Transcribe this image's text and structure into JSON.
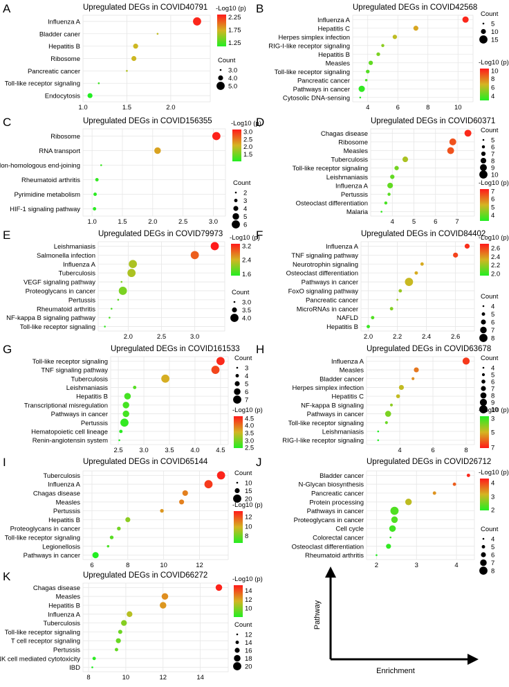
{
  "figure": {
    "legend_labels": {
      "count": "Count",
      "color": "-Log10 (p)"
    },
    "guide": {
      "y_label": "Pathway",
      "x_label": "Enrichment"
    },
    "colors": {
      "low": "#22ee22",
      "mid": "#d4b522",
      "high": "#ff1a1a",
      "grid": "#e6e6e6"
    }
  },
  "chart_data": [
    {
      "id": "A",
      "letter": "A",
      "type": "scatter",
      "title": "Upregulated DEGs in COVID40791",
      "pathways": [
        "Influenza A",
        "Bladder caner",
        "Hepatitis B",
        "Ribosome",
        "Pancreatic cancer",
        "Toll-like receptor signaling",
        "Endocytosis"
      ],
      "enrichment": [
        2.3,
        1.85,
        1.6,
        1.58,
        1.5,
        1.18,
        1.08
      ],
      "neg_log10_p": [
        2.3,
        1.65,
        1.7,
        1.7,
        1.6,
        1.2,
        1.1
      ],
      "count": [
        5,
        3,
        4,
        4,
        3,
        3,
        4
      ],
      "xlim": [
        1.0,
        2.45
      ],
      "xticks": [
        1.0,
        1.5,
        2.0
      ],
      "xtick_labels": [
        "1.0",
        "1.5",
        "2.0"
      ],
      "color_range": [
        1.1,
        2.35
      ],
      "color_ticks": [
        "2.25",
        "1.75",
        "1.25"
      ],
      "color_tick_values": [
        2.25,
        1.75,
        1.25
      ],
      "count_ticks": [
        "3.0",
        "4.0",
        "5.0"
      ],
      "count_tick_values": [
        3,
        4,
        5
      ],
      "count_range": [
        3,
        5
      ],
      "legend_order": "color-first"
    },
    {
      "id": "B",
      "letter": "B",
      "type": "scatter",
      "title": "Upregulated DEGs in COVID42568",
      "pathways": [
        "Influenza A",
        "Hepatitis C",
        "Herpes simplex infection",
        "RIG-I-like receptor signaling",
        "Hepatitis B",
        "Measles",
        "Toll-like receptor signaling",
        "Pancreatic cancer",
        "Pathways in cancer",
        "Cytosolic DNA-sensing"
      ],
      "enrichment": [
        10.5,
        7.2,
        5.8,
        5.0,
        4.7,
        4.2,
        4.0,
        3.9,
        3.6,
        3.5
      ],
      "neg_log10_p": [
        10,
        7,
        6.2,
        5.2,
        4.8,
        4.3,
        4,
        3.8,
        3.3,
        3.1
      ],
      "count": [
        12,
        10,
        9,
        7,
        8,
        9,
        8,
        6,
        12,
        5
      ],
      "xlim": [
        3.0,
        11.0
      ],
      "xticks": [
        4,
        6,
        8,
        10
      ],
      "xtick_labels": [
        "4",
        "6",
        "8",
        "10"
      ],
      "color_range": [
        3.0,
        10.3
      ],
      "color_ticks": [
        "10",
        "8",
        "6",
        "4"
      ],
      "color_tick_values": [
        10,
        8,
        6,
        4
      ],
      "count_ticks": [
        "5",
        "10",
        "15"
      ],
      "count_tick_values": [
        5,
        10,
        15
      ],
      "count_range": [
        5,
        15
      ],
      "legend_order": "count-first"
    },
    {
      "id": "C",
      "letter": "C",
      "type": "scatter",
      "title": "Upregulated DEGs in COVID156355",
      "pathways": [
        "Ribosome",
        "RNA transport",
        "Non-homologous end-joining",
        "Rheumatoid arthritis",
        "Pyrimidine metabolism",
        "HIF-1 signaling pathway"
      ],
      "enrichment": [
        3.05,
        2.08,
        1.15,
        1.08,
        1.05,
        1.04
      ],
      "neg_log10_p": [
        3.1,
        2.2,
        1.15,
        1.1,
        1.05,
        1.05
      ],
      "count": [
        6,
        5,
        2,
        3,
        3,
        3
      ],
      "xlim": [
        0.85,
        3.2
      ],
      "xticks": [
        1.0,
        1.5,
        2.0,
        2.5,
        3.0
      ],
      "xtick_labels": [
        "1.0",
        "1.5",
        "2.0",
        "2.5",
        "3.0"
      ],
      "color_range": [
        1.0,
        3.15
      ],
      "color_ticks": [
        "3.0",
        "2.5",
        "2.0",
        "1.5"
      ],
      "color_tick_values": [
        3.0,
        2.5,
        2.0,
        1.5
      ],
      "count_ticks": [
        "2",
        "3",
        "4",
        "5",
        "6"
      ],
      "count_tick_values": [
        2,
        3,
        4,
        5,
        6
      ],
      "count_range": [
        2,
        6
      ],
      "legend_order": "color-first"
    },
    {
      "id": "D",
      "letter": "D",
      "type": "scatter",
      "title": "Upregulated DEGs in COVID60371",
      "pathways": [
        "Chagas disease",
        "Ribosome",
        "Measles",
        "Tuberculosis",
        "Toll-like receptor signaling",
        "Leishmaniasis",
        "Influenza A",
        "Pertussis",
        "Osteoclast differentiation",
        "Malaria"
      ],
      "enrichment": [
        7.5,
        6.8,
        6.7,
        4.6,
        4.2,
        4.0,
        3.9,
        3.85,
        3.7,
        3.5
      ],
      "neg_log10_p": [
        7,
        6.5,
        6.5,
        4.8,
        4.2,
        4.0,
        4.0,
        3.9,
        3.7,
        3.5
      ],
      "count": [
        9,
        9,
        9,
        8,
        7,
        7,
        8,
        6,
        6,
        5
      ],
      "xlim": [
        3.0,
        7.8
      ],
      "xticks": [
        4,
        5,
        6,
        7
      ],
      "xtick_labels": [
        "4",
        "5",
        "6",
        "7"
      ],
      "color_range": [
        3.3,
        7.2
      ],
      "color_ticks": [
        "7",
        "6",
        "5",
        "4"
      ],
      "color_tick_values": [
        7,
        6,
        5,
        4
      ],
      "count_ticks": [
        "5",
        "6",
        "7",
        "8",
        "9",
        "10"
      ],
      "count_tick_values": [
        5,
        6,
        7,
        8,
        9,
        10
      ],
      "count_range": [
        5,
        10
      ],
      "legend_order": "count-first"
    },
    {
      "id": "E",
      "letter": "E",
      "type": "scatter",
      "title": "Upregulated DEGs in COVID79973",
      "pathways": [
        "Leishmaniasis",
        "Salmonella infection",
        "Influenza A",
        "Tuberculosis",
        "VEGF signaling pathway",
        "Proteoglycans in cancer",
        "Pertussis",
        "Rheumatoid arthritis",
        "NF-kappa B signaling pathway",
        "Toll-like receptor signaling"
      ],
      "enrichment": [
        3.3,
        3.0,
        2.07,
        2.05,
        1.9,
        1.92,
        1.85,
        1.75,
        1.72,
        1.65
      ],
      "neg_log10_p": [
        3.3,
        2.9,
        2.2,
        2.2,
        1.95,
        1.95,
        1.8,
        1.7,
        1.7,
        1.6
      ],
      "count": [
        4,
        4,
        4,
        4,
        3,
        4,
        3,
        3,
        3,
        3
      ],
      "xlim": [
        1.55,
        3.45
      ],
      "xticks": [
        2.0,
        2.5,
        3.0
      ],
      "xtick_labels": [
        "2.0",
        "2.5",
        "3.0"
      ],
      "color_range": [
        1.5,
        3.3
      ],
      "color_ticks": [
        "3.2",
        "2.4",
        "1.6"
      ],
      "color_tick_values": [
        3.2,
        2.4,
        1.6
      ],
      "count_ticks": [
        "3.0",
        "3.5",
        "4.0"
      ],
      "count_tick_values": [
        3,
        3.5,
        4
      ],
      "count_range": [
        3,
        4
      ],
      "legend_order": "color-first"
    },
    {
      "id": "F",
      "letter": "F",
      "type": "scatter",
      "title": "Upregulated DEGs in COVID84402",
      "pathways": [
        "Influenza A",
        "TNF signaling pathway",
        "Neurotrophin signaling",
        "Osteoclast differentiation",
        "Pathways in cancer",
        "FoxO signaling pathway",
        "Pancreatic cancer",
        "MicroRNAs in cancer",
        "NAFLD",
        "Hepatitis B"
      ],
      "enrichment": [
        2.68,
        2.6,
        2.37,
        2.33,
        2.28,
        2.22,
        2.2,
        2.16,
        2.03,
        2.0
      ],
      "neg_log10_p": [
        2.65,
        2.6,
        2.35,
        2.35,
        2.3,
        2.2,
        2.2,
        2.15,
        2.05,
        2.0
      ],
      "count": [
        6,
        6,
        5,
        5,
        8,
        5,
        4,
        5,
        5,
        5
      ],
      "xlim": [
        1.95,
        2.73
      ],
      "xticks": [
        2.0,
        2.2,
        2.4,
        2.6
      ],
      "xtick_labels": [
        "2.0",
        "2.2",
        "2.4",
        "2.6"
      ],
      "color_range": [
        1.95,
        2.7
      ],
      "color_ticks": [
        "2.6",
        "2.4",
        "2.2",
        "2.0"
      ],
      "color_tick_values": [
        2.6,
        2.4,
        2.2,
        2.0
      ],
      "count_ticks": [
        "4",
        "5",
        "6",
        "7",
        "8"
      ],
      "count_tick_values": [
        4,
        5,
        6,
        7,
        8
      ],
      "count_range": [
        4,
        8
      ],
      "legend_order": "color-first"
    },
    {
      "id": "G",
      "letter": "G",
      "type": "scatter",
      "title": "Upregulated DEGs in COVID161533",
      "pathways": [
        "Toll-like receptor signaling",
        "TNF signaling pathway",
        "Tuberculosis",
        "Leishmaniasis",
        "Hepatitis B",
        "Transcriptional misregulation",
        "Pathways in cancer",
        "Pertussis",
        "Hematopoietic cell lineage",
        "Renin-angiotensin system"
      ],
      "enrichment": [
        4.5,
        4.4,
        3.42,
        2.82,
        2.68,
        2.65,
        2.65,
        2.62,
        2.55,
        2.52
      ],
      "neg_log10_p": [
        4.5,
        4.3,
        3.6,
        2.8,
        2.7,
        2.7,
        2.7,
        2.6,
        2.55,
        2.5
      ],
      "count": [
        7,
        7,
        7,
        4,
        6,
        6,
        6,
        7,
        4,
        3
      ],
      "xlim": [
        2.35,
        4.65
      ],
      "xticks": [
        2.5,
        3.0,
        3.5,
        4.0,
        4.5
      ],
      "xtick_labels": [
        "2.5",
        "3.0",
        "3.5",
        "4.0",
        "4.5"
      ],
      "color_range": [
        2.5,
        4.6
      ],
      "color_ticks": [
        "4.5",
        "4.0",
        "3.5",
        "3.0",
        "2.5"
      ],
      "color_tick_values": [
        4.5,
        4.0,
        3.5,
        3.0,
        2.5
      ],
      "count_ticks": [
        "3",
        "4",
        "5",
        "6",
        "7"
      ],
      "count_tick_values": [
        3,
        4,
        5,
        6,
        7
      ],
      "count_range": [
        3,
        7
      ],
      "legend_order": "count-first"
    },
    {
      "id": "H",
      "letter": "H",
      "type": "scatter",
      "title": "Upregulated DEGs in COVID63678",
      "pathways": [
        "Influenza A",
        "Measles",
        "Bladder cancer",
        "Herpes simplex infection",
        "Hepatitis C",
        "NF-kappa B signaling",
        "Pathways in cancer",
        "Toll-like receptor signaling",
        "Leishmaniasis",
        "RIG-I-like receptor signaling"
      ],
      "enrichment": [
        8.0,
        5.0,
        4.8,
        4.1,
        3.9,
        3.5,
        3.3,
        3.2,
        2.7,
        2.7
      ],
      "neg_log10_p": [
        3.4,
        4.2,
        4.5,
        5.2,
        5.2,
        5.8,
        6,
        6.2,
        7,
        7
      ],
      "count": [
        9,
        7,
        5,
        7,
        6,
        5,
        8,
        5,
        4,
        4
      ],
      "xlim": [
        2.0,
        8.5
      ],
      "xticks": [
        4,
        6,
        8
      ],
      "xtick_labels": [
        "4",
        "6",
        "8"
      ],
      "color_range": [
        3.0,
        7.0
      ],
      "color_inverted": true,
      "color_ticks": [
        "3",
        "5",
        "7"
      ],
      "color_tick_values": [
        3,
        5,
        7
      ],
      "count_ticks": [
        "4",
        "5",
        "6",
        "7",
        "8",
        "9",
        "10"
      ],
      "count_tick_values": [
        4,
        5,
        6,
        7,
        8,
        9,
        10
      ],
      "count_range": [
        4,
        10
      ],
      "legend_order": "count-first"
    },
    {
      "id": "I",
      "letter": "I",
      "type": "scatter",
      "title": "Upregulated DEGs in COVID65144",
      "pathways": [
        "Tuberculosis",
        "Influenza A",
        "Chagas disease",
        "Measles",
        "Pertussis",
        "Hepatitis B",
        "Proteoglycans in cancer",
        "Toll-like receptor signaling",
        "Legionellosis",
        "Pathways in cancer"
      ],
      "enrichment": [
        13.2,
        12.5,
        11.2,
        11.0,
        9.9,
        8.0,
        7.5,
        7.1,
        6.9,
        6.2
      ],
      "neg_log10_p": [
        13,
        12.5,
        11,
        11,
        10.5,
        8.5,
        8,
        7.5,
        7.2,
        6.5
      ],
      "count": [
        20,
        20,
        16,
        15,
        13,
        15,
        13,
        13,
        11,
        17
      ],
      "xlim": [
        5.5,
        13.6
      ],
      "xticks": [
        6,
        8,
        10,
        12
      ],
      "xtick_labels": [
        "6",
        "8",
        "10",
        "12"
      ],
      "color_range": [
        6.5,
        13.2
      ],
      "color_ticks": [
        "12",
        "10",
        "8"
      ],
      "color_tick_values": [
        12,
        10,
        8
      ],
      "count_ticks": [
        "10",
        "15",
        "20"
      ],
      "count_tick_values": [
        10,
        15,
        20
      ],
      "count_range": [
        10,
        20
      ],
      "legend_order": "count-first"
    },
    {
      "id": "J",
      "letter": "J",
      "type": "scatter",
      "title": "Upregulated DEGs in COVID26712",
      "pathways": [
        "Bladder cancer",
        "N-Glycan biosynthesis",
        "Pancreatic cancer",
        "Protein processing",
        "Pathways in cancer",
        "Proteoglycans in cancer",
        "Cell cycle",
        "Colorectal cancer",
        "Osteoclast differentiation",
        "Rheumatoid arthritis"
      ],
      "enrichment": [
        4.3,
        3.95,
        3.45,
        2.8,
        2.45,
        2.45,
        2.4,
        2.35,
        2.3,
        2.0
      ],
      "neg_log10_p": [
        4.2,
        3.8,
        3.4,
        3.0,
        2.3,
        2.3,
        2.2,
        2.1,
        2.1,
        2.0
      ],
      "count": [
        5,
        5,
        5,
        7,
        8,
        7,
        7,
        4,
        6,
        4
      ],
      "xlim": [
        1.75,
        4.45
      ],
      "xticks": [
        2,
        3,
        4
      ],
      "xtick_labels": [
        "2",
        "3",
        "4"
      ],
      "color_range": [
        2.0,
        4.3
      ],
      "color_ticks": [
        "4",
        "3",
        "2"
      ],
      "color_tick_values": [
        4,
        3,
        2
      ],
      "count_ticks": [
        "4",
        "5",
        "6",
        "7",
        "8"
      ],
      "count_tick_values": [
        4,
        5,
        6,
        7,
        8
      ],
      "count_range": [
        4,
        8
      ],
      "legend_order": "color-first"
    },
    {
      "id": "K",
      "letter": "K",
      "type": "scatter",
      "title": "Upregulated DEGs in COVID66272",
      "pathways": [
        "Chagas disease",
        "Measles",
        "Hepatitis B",
        "Influenza A",
        "Tuberculosis",
        "Toll-like receptor signaling",
        "T cell receptor signaling",
        "Pertussis",
        "NK cell mediated cytotoxicity",
        "IBD"
      ],
      "enrichment": [
        15.0,
        12.1,
        12.0,
        10.2,
        9.9,
        9.7,
        9.6,
        9.5,
        8.3,
        8.2
      ],
      "neg_log10_p": [
        15,
        12.5,
        12.3,
        11,
        10,
        9.5,
        9.4,
        9.3,
        8.2,
        8
      ],
      "count": [
        18,
        18,
        18,
        17,
        17,
        15,
        16,
        14,
        14,
        12
      ],
      "xlim": [
        7.7,
        15.5
      ],
      "xticks": [
        8,
        10,
        12,
        14
      ],
      "xtick_labels": [
        "8",
        "10",
        "12",
        "14"
      ],
      "color_range": [
        8.0,
        15.2
      ],
      "color_ticks": [
        "14",
        "12",
        "10"
      ],
      "color_tick_values": [
        14,
        12,
        10
      ],
      "count_ticks": [
        "12",
        "14",
        "16",
        "18",
        "20"
      ],
      "count_tick_values": [
        12,
        14,
        16,
        18,
        20
      ],
      "count_range": [
        12,
        20
      ],
      "legend_order": "color-first"
    }
  ]
}
